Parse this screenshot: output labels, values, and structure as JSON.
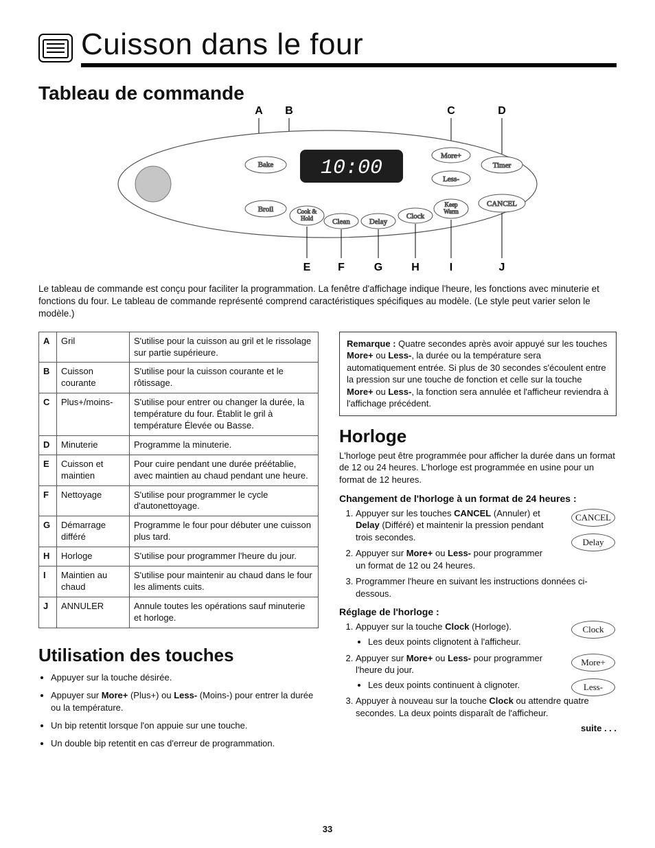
{
  "page_number": "33",
  "title": "Cuisson dans le four",
  "section1_heading": "Tableau de commande",
  "panel": {
    "labels_top": [
      "A",
      "B",
      "C",
      "D"
    ],
    "labels_bottom": [
      "E",
      "F",
      "G",
      "H",
      "I",
      "J"
    ],
    "display_time": "10:00",
    "buttons": {
      "bake": "Bake",
      "broil": "Broil",
      "cook_hold": "Cook &\nHold",
      "clean": "Clean",
      "delay": "Delay",
      "clock": "Clock",
      "keep_warm": "Keep\nWarm",
      "more": "More+",
      "less": "Less-",
      "cancel": "CANCEL",
      "timer": "Timer"
    },
    "colors": {
      "outline": "#555555",
      "fill": "#ffffff",
      "display_bg": "#1e1e1e",
      "display_fg": "#ffffff",
      "knob": "#c6c6c6",
      "knob_stroke": "#777777"
    }
  },
  "intro": "Le tableau de commande est conçu pour faciliter la programmation. La fenêtre d'affichage indique l'heure, les fonctions avec minuterie et fonctions du four. Le tableau de commande représenté comprend caractéristiques spécifiques au modèle. (Le style peut varier selon le modèle.)",
  "table_rows": [
    {
      "k": "A",
      "l": "Gril",
      "d": "S'utilise pour la cuisson au gril et le rissolage sur partie supérieure."
    },
    {
      "k": "B",
      "l": "Cuisson courante",
      "d": "S'utilise pour la cuisson courante et le rôtissage."
    },
    {
      "k": "C",
      "l": "Plus+/moins-",
      "d": "S'utilise pour entrer ou changer la durée, la température du four. Établit le gril à température Élevée ou Basse."
    },
    {
      "k": "D",
      "l": "Minuterie",
      "d": "Programme la minuterie."
    },
    {
      "k": "E",
      "l": "Cuisson et maintien",
      "d": "Pour cuire pendant une durée préétablie, avec maintien au chaud pendant une heure."
    },
    {
      "k": "F",
      "l": "Nettoyage",
      "d": "S'utilise pour programmer le cycle d'autonettoyage."
    },
    {
      "k": "G",
      "l": "Démarrage différé",
      "d": "Programme le four pour débuter une cuisson plus tard."
    },
    {
      "k": "H",
      "l": "Horloge",
      "d": "S'utilise pour programmer l'heure du jour."
    },
    {
      "k": "I",
      "l": "Maintien au chaud",
      "d": "S'utilise pour maintenir au chaud dans le four les aliments cuits."
    },
    {
      "k": "J",
      "l": "ANNULER",
      "d": "Annule toutes les opérations sauf minuterie et horloge."
    }
  ],
  "utilisation": {
    "heading": "Utilisation des touches",
    "bullets": [
      {
        "pre": "Appuyer sur la touche désirée."
      },
      {
        "pre": "Appuyer sur ",
        "b1": "More+",
        "mid1": " (Plus+) ou ",
        "b2": "Less-",
        "mid2": " (Moins-) pour entrer la durée  ou la température."
      },
      {
        "pre": "Un bip retentit lorsque l'on appuie sur une touche."
      },
      {
        "pre": "Un double bip retentit en cas d'erreur de programmation."
      }
    ]
  },
  "note": {
    "lead": "Remarque :",
    "t1": "  Quatre secondes après avoir appuyé sur les touches ",
    "b1": "More+",
    "t2": " ou ",
    "b2": "Less-",
    "t3": ", la durée ou la température sera automatiquement entrée. Si plus de 30 secondes s'écoulent entre la pression sur une touche de fonction et celle sur la touche ",
    "b3": "More+",
    "t4": " ou ",
    "b4": "Less-",
    "t5": ", la fonction sera annulée et l'afficheur reviendra à l'affichage précédent."
  },
  "horloge": {
    "heading": "Horloge",
    "intro": "L'horloge peut être programmée pour afficher la durée dans un format de 12 ou 24 heures. L'horloge est programmée en usine pour un format de 12 heures.",
    "sec1_heading": "Changement de l'horloge à un format de 24 heures :",
    "s1_1a": "Appuyer sur les touches ",
    "s1_1b": "CANCEL",
    "s1_1c": " (Annuler) et ",
    "s1_1d": "Delay",
    "s1_1e": " (Différé) et maintenir la pression pendant trois secondes.",
    "s1_2a": "Appuyer sur ",
    "s1_2b": "More+",
    "s1_2c": " ou ",
    "s1_2d": "Less-",
    "s1_2e": " pour programmer un format de 12 ou 24 heures.",
    "s1_3": "Programmer l'heure en suivant les instructions données ci-dessous.",
    "sec2_heading": "Réglage de l'horloge :",
    "s2_1a": "Appuyer sur la touche ",
    "s2_1b": "Clock",
    "s2_1c": " (Horloge).",
    "s2_1_sub": "Les deux points clignotent à l'afficheur.",
    "s2_2a": "Appuyer sur ",
    "s2_2b": "More+",
    "s2_2c": " ou ",
    "s2_2d": "Less-",
    "s2_2e": " pour programmer l'heure du jour.",
    "s2_2_sub": "Les deux points continuent à clignoter.",
    "s2_3a": "Appuyer à nouveau sur la touche ",
    "s2_3b": "Clock",
    "s2_3c": " ou attendre quatre secondes. La deux points disparaît de l'afficheur.",
    "pills1": [
      "CANCEL",
      "Delay"
    ],
    "pills2": [
      "Clock",
      "More+",
      "Less-"
    ]
  },
  "suite": "suite . . ."
}
